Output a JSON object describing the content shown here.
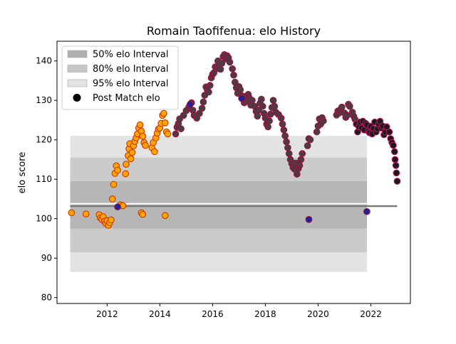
{
  "chart_data": {
    "type": "scatter",
    "title": "Romain Taofifenua: elo History",
    "xlabel": "",
    "ylabel": "elo score",
    "xlim": [
      2010.1,
      2023.5
    ],
    "ylim": [
      78.5,
      145
    ],
    "x_ticks": [
      2012,
      2014,
      2016,
      2018,
      2020,
      2022
    ],
    "y_ticks": [
      80,
      90,
      100,
      110,
      120,
      130,
      140
    ],
    "grid": false,
    "legend_position": "top-left",
    "legend": [
      {
        "label": "50% elo Interval",
        "kind": "band",
        "color": "#b0b0b0"
      },
      {
        "label": "80% elo Interval",
        "kind": "band",
        "color": "#c6c6c6"
      },
      {
        "label": "95% elo Interval",
        "kind": "band",
        "color": "#e2e2e2"
      },
      {
        "label": "Post Match elo",
        "kind": "marker",
        "color": "#000000"
      }
    ],
    "intervals": {
      "x_range": [
        2010.6,
        2021.85
      ],
      "center": 103.2,
      "band_50": [
        97.5,
        109.5
      ],
      "band_80": [
        91.5,
        115.5
      ],
      "band_95": [
        86.5,
        121.0
      ]
    },
    "series": [
      {
        "values_note": "",
        "color": "#ffa500",
        "edge": "#cc3300",
        "points": [
          [
            2010.65,
            101.5
          ],
          [
            2011.2,
            101.2
          ],
          [
            2011.7,
            101.0
          ],
          [
            2011.75,
            100.2
          ],
          [
            2011.8,
            99.8
          ],
          [
            2011.85,
            100.5
          ],
          [
            2011.9,
            99.3
          ],
          [
            2011.95,
            98.8
          ],
          [
            2012.0,
            99.5
          ],
          [
            2012.05,
            98.3
          ],
          [
            2012.1,
            99.0
          ],
          [
            2012.15,
            99.7
          ],
          [
            2012.2,
            105.0
          ],
          [
            2012.25,
            108.7
          ],
          [
            2012.3,
            111.5
          ],
          [
            2012.35,
            113.4
          ],
          [
            2012.4,
            112.3
          ],
          [
            2012.5,
            103.5
          ],
          [
            2012.6,
            103.3
          ],
          [
            2012.7,
            111.4
          ],
          [
            2012.72,
            113.8
          ],
          [
            2012.8,
            116.0
          ],
          [
            2012.83,
            117.7
          ],
          [
            2012.86,
            119.0
          ],
          [
            2012.9,
            115.2
          ],
          [
            2012.95,
            116.8
          ],
          [
            2013.0,
            118.5
          ],
          [
            2013.05,
            119.6
          ],
          [
            2013.1,
            120.5
          ],
          [
            2013.15,
            121.5
          ],
          [
            2013.2,
            123.0
          ],
          [
            2013.25,
            123.8
          ],
          [
            2013.3,
            122.2
          ],
          [
            2013.35,
            120.9
          ],
          [
            2013.4,
            119.3
          ],
          [
            2013.45,
            118.6
          ],
          [
            2013.3,
            101.5
          ],
          [
            2013.35,
            101.1
          ],
          [
            2013.7,
            118.0
          ],
          [
            2013.75,
            119.3
          ],
          [
            2013.8,
            117.0
          ],
          [
            2013.85,
            120.5
          ],
          [
            2013.9,
            121.7
          ],
          [
            2013.95,
            122.7
          ],
          [
            2014.0,
            123.0
          ],
          [
            2014.05,
            124.2
          ],
          [
            2014.1,
            126.2
          ],
          [
            2014.15,
            126.7
          ],
          [
            2014.2,
            124.3
          ],
          [
            2014.25,
            122.0
          ],
          [
            2014.3,
            121.5
          ],
          [
            2014.2,
            100.8
          ]
        ]
      },
      {
        "values_note": "",
        "color": "#4b3a4a",
        "edge": "#a01030",
        "points": [
          [
            2014.6,
            121.5
          ],
          [
            2014.65,
            123.2
          ],
          [
            2014.7,
            124.1
          ],
          [
            2014.75,
            125.3
          ],
          [
            2014.8,
            122.8
          ],
          [
            2014.9,
            126.2
          ],
          [
            2015.0,
            127.4
          ],
          [
            2015.1,
            128.3
          ],
          [
            2015.2,
            129.4
          ],
          [
            2015.25,
            127.5
          ],
          [
            2015.3,
            126.2
          ],
          [
            2015.4,
            125.5
          ],
          [
            2015.5,
            126.7
          ],
          [
            2015.6,
            128.0
          ],
          [
            2015.65,
            129.6
          ],
          [
            2015.7,
            131.3
          ],
          [
            2015.75,
            133.4
          ],
          [
            2015.8,
            132.7
          ],
          [
            2015.85,
            132.1
          ],
          [
            2015.9,
            133.8
          ],
          [
            2015.95,
            135.7
          ],
          [
            2016.0,
            136.6
          ],
          [
            2016.05,
            137.0
          ],
          [
            2016.1,
            138.5
          ],
          [
            2016.15,
            138.1
          ],
          [
            2016.2,
            140.0
          ],
          [
            2016.25,
            139.0
          ],
          [
            2016.3,
            137.9
          ],
          [
            2016.35,
            139.4
          ],
          [
            2016.4,
            141.1
          ],
          [
            2016.45,
            141.6
          ],
          [
            2016.5,
            140.5
          ],
          [
            2016.55,
            141.3
          ],
          [
            2016.6,
            140.8
          ],
          [
            2016.65,
            139.7
          ],
          [
            2016.75,
            138.0
          ],
          [
            2016.8,
            136.4
          ],
          [
            2016.85,
            134.6
          ],
          [
            2016.9,
            133.2
          ],
          [
            2016.95,
            131.8
          ],
          [
            2017.0,
            133.5
          ],
          [
            2017.05,
            132.7
          ],
          [
            2017.1,
            131.2
          ],
          [
            2017.15,
            130.6
          ],
          [
            2017.2,
            129.4
          ],
          [
            2017.25,
            131.0
          ],
          [
            2017.3,
            129.8
          ],
          [
            2017.35,
            131.5
          ],
          [
            2017.4,
            130.5
          ],
          [
            2017.45,
            128.8
          ],
          [
            2017.5,
            130.0
          ],
          [
            2017.6,
            128.5
          ],
          [
            2017.65,
            127.2
          ],
          [
            2017.7,
            126.0
          ],
          [
            2017.75,
            127.5
          ],
          [
            2017.8,
            129.3
          ],
          [
            2017.85,
            130.3
          ],
          [
            2017.9,
            128.5
          ],
          [
            2017.95,
            126.7
          ],
          [
            2018.0,
            125.5
          ],
          [
            2018.05,
            124.0
          ],
          [
            2018.1,
            123.3
          ],
          [
            2018.15,
            124.8
          ],
          [
            2018.2,
            126.5
          ],
          [
            2018.25,
            128.2
          ],
          [
            2018.3,
            130.0
          ],
          [
            2018.35,
            128.5
          ],
          [
            2018.4,
            127.0
          ],
          [
            2018.5,
            126.4
          ],
          [
            2018.6,
            125.5
          ],
          [
            2018.65,
            124.0
          ],
          [
            2018.7,
            122.5
          ],
          [
            2018.75,
            121.0
          ],
          [
            2018.8,
            119.5
          ],
          [
            2018.85,
            118.0
          ],
          [
            2018.9,
            116.5
          ],
          [
            2018.95,
            115.0
          ],
          [
            2019.0,
            114.0
          ],
          [
            2019.05,
            113.0
          ],
          [
            2019.1,
            112.6
          ],
          [
            2019.15,
            114.1
          ],
          [
            2019.2,
            111.3
          ],
          [
            2019.25,
            112.7
          ],
          [
            2019.3,
            113.5
          ],
          [
            2019.35,
            115.0
          ],
          [
            2019.4,
            116.5
          ],
          [
            2019.6,
            118.5
          ],
          [
            2019.65,
            120.3
          ],
          [
            2019.7,
            120.0
          ],
          [
            2019.95,
            122.0
          ],
          [
            2020.0,
            123.5
          ],
          [
            2020.05,
            125.3
          ],
          [
            2020.1,
            124.0
          ],
          [
            2020.15,
            125.6
          ],
          [
            2020.2,
            124.8
          ],
          [
            2020.7,
            126.3
          ],
          [
            2020.75,
            127.3
          ],
          [
            2020.8,
            126.8
          ],
          [
            2020.85,
            127.7
          ],
          [
            2020.9,
            128.3
          ],
          [
            2021.0,
            126.8
          ],
          [
            2021.05,
            125.7
          ],
          [
            2021.1,
            126.2
          ],
          [
            2021.15,
            129.0
          ],
          [
            2021.2,
            128.5
          ],
          [
            2021.3,
            127.0
          ],
          [
            2021.35,
            126.0
          ],
          [
            2021.4,
            125.2
          ]
        ]
      },
      {
        "values_note": "",
        "color": "#1a1a1a",
        "edge": "#c01060",
        "points": [
          [
            2021.45,
            124.0
          ],
          [
            2021.5,
            122.0
          ],
          [
            2021.55,
            123.3
          ],
          [
            2021.6,
            124.5
          ],
          [
            2021.65,
            123.0
          ],
          [
            2021.7,
            124.7
          ],
          [
            2021.75,
            122.5
          ],
          [
            2021.8,
            124.2
          ],
          [
            2021.85,
            123.8
          ],
          [
            2021.9,
            122.2
          ],
          [
            2021.95,
            121.8
          ],
          [
            2022.0,
            123.4
          ],
          [
            2022.05,
            121.5
          ],
          [
            2022.1,
            122.8
          ],
          [
            2022.15,
            124.5
          ],
          [
            2022.2,
            122.0
          ],
          [
            2022.25,
            122.8
          ],
          [
            2022.3,
            124.0
          ],
          [
            2022.35,
            124.7
          ],
          [
            2022.4,
            123.0
          ],
          [
            2022.45,
            123.5
          ],
          [
            2022.5,
            121.3
          ],
          [
            2022.55,
            122.0
          ],
          [
            2022.6,
            123.3
          ],
          [
            2022.7,
            122.0
          ],
          [
            2022.75,
            120.3
          ],
          [
            2022.8,
            119.3
          ],
          [
            2022.85,
            118.6
          ],
          [
            2022.9,
            117.0
          ],
          [
            2022.92,
            115.0
          ],
          [
            2022.95,
            113.5
          ],
          [
            2022.97,
            111.6
          ],
          [
            2023.0,
            109.5
          ]
        ]
      },
      {
        "values_note": "",
        "color": "#2020a0",
        "edge": "#a01030",
        "points": [
          [
            2012.4,
            103.0
          ],
          [
            2015.15,
            129.0
          ],
          [
            2017.1,
            130.5
          ],
          [
            2019.65,
            99.8
          ],
          [
            2021.85,
            101.8
          ]
        ]
      }
    ]
  }
}
